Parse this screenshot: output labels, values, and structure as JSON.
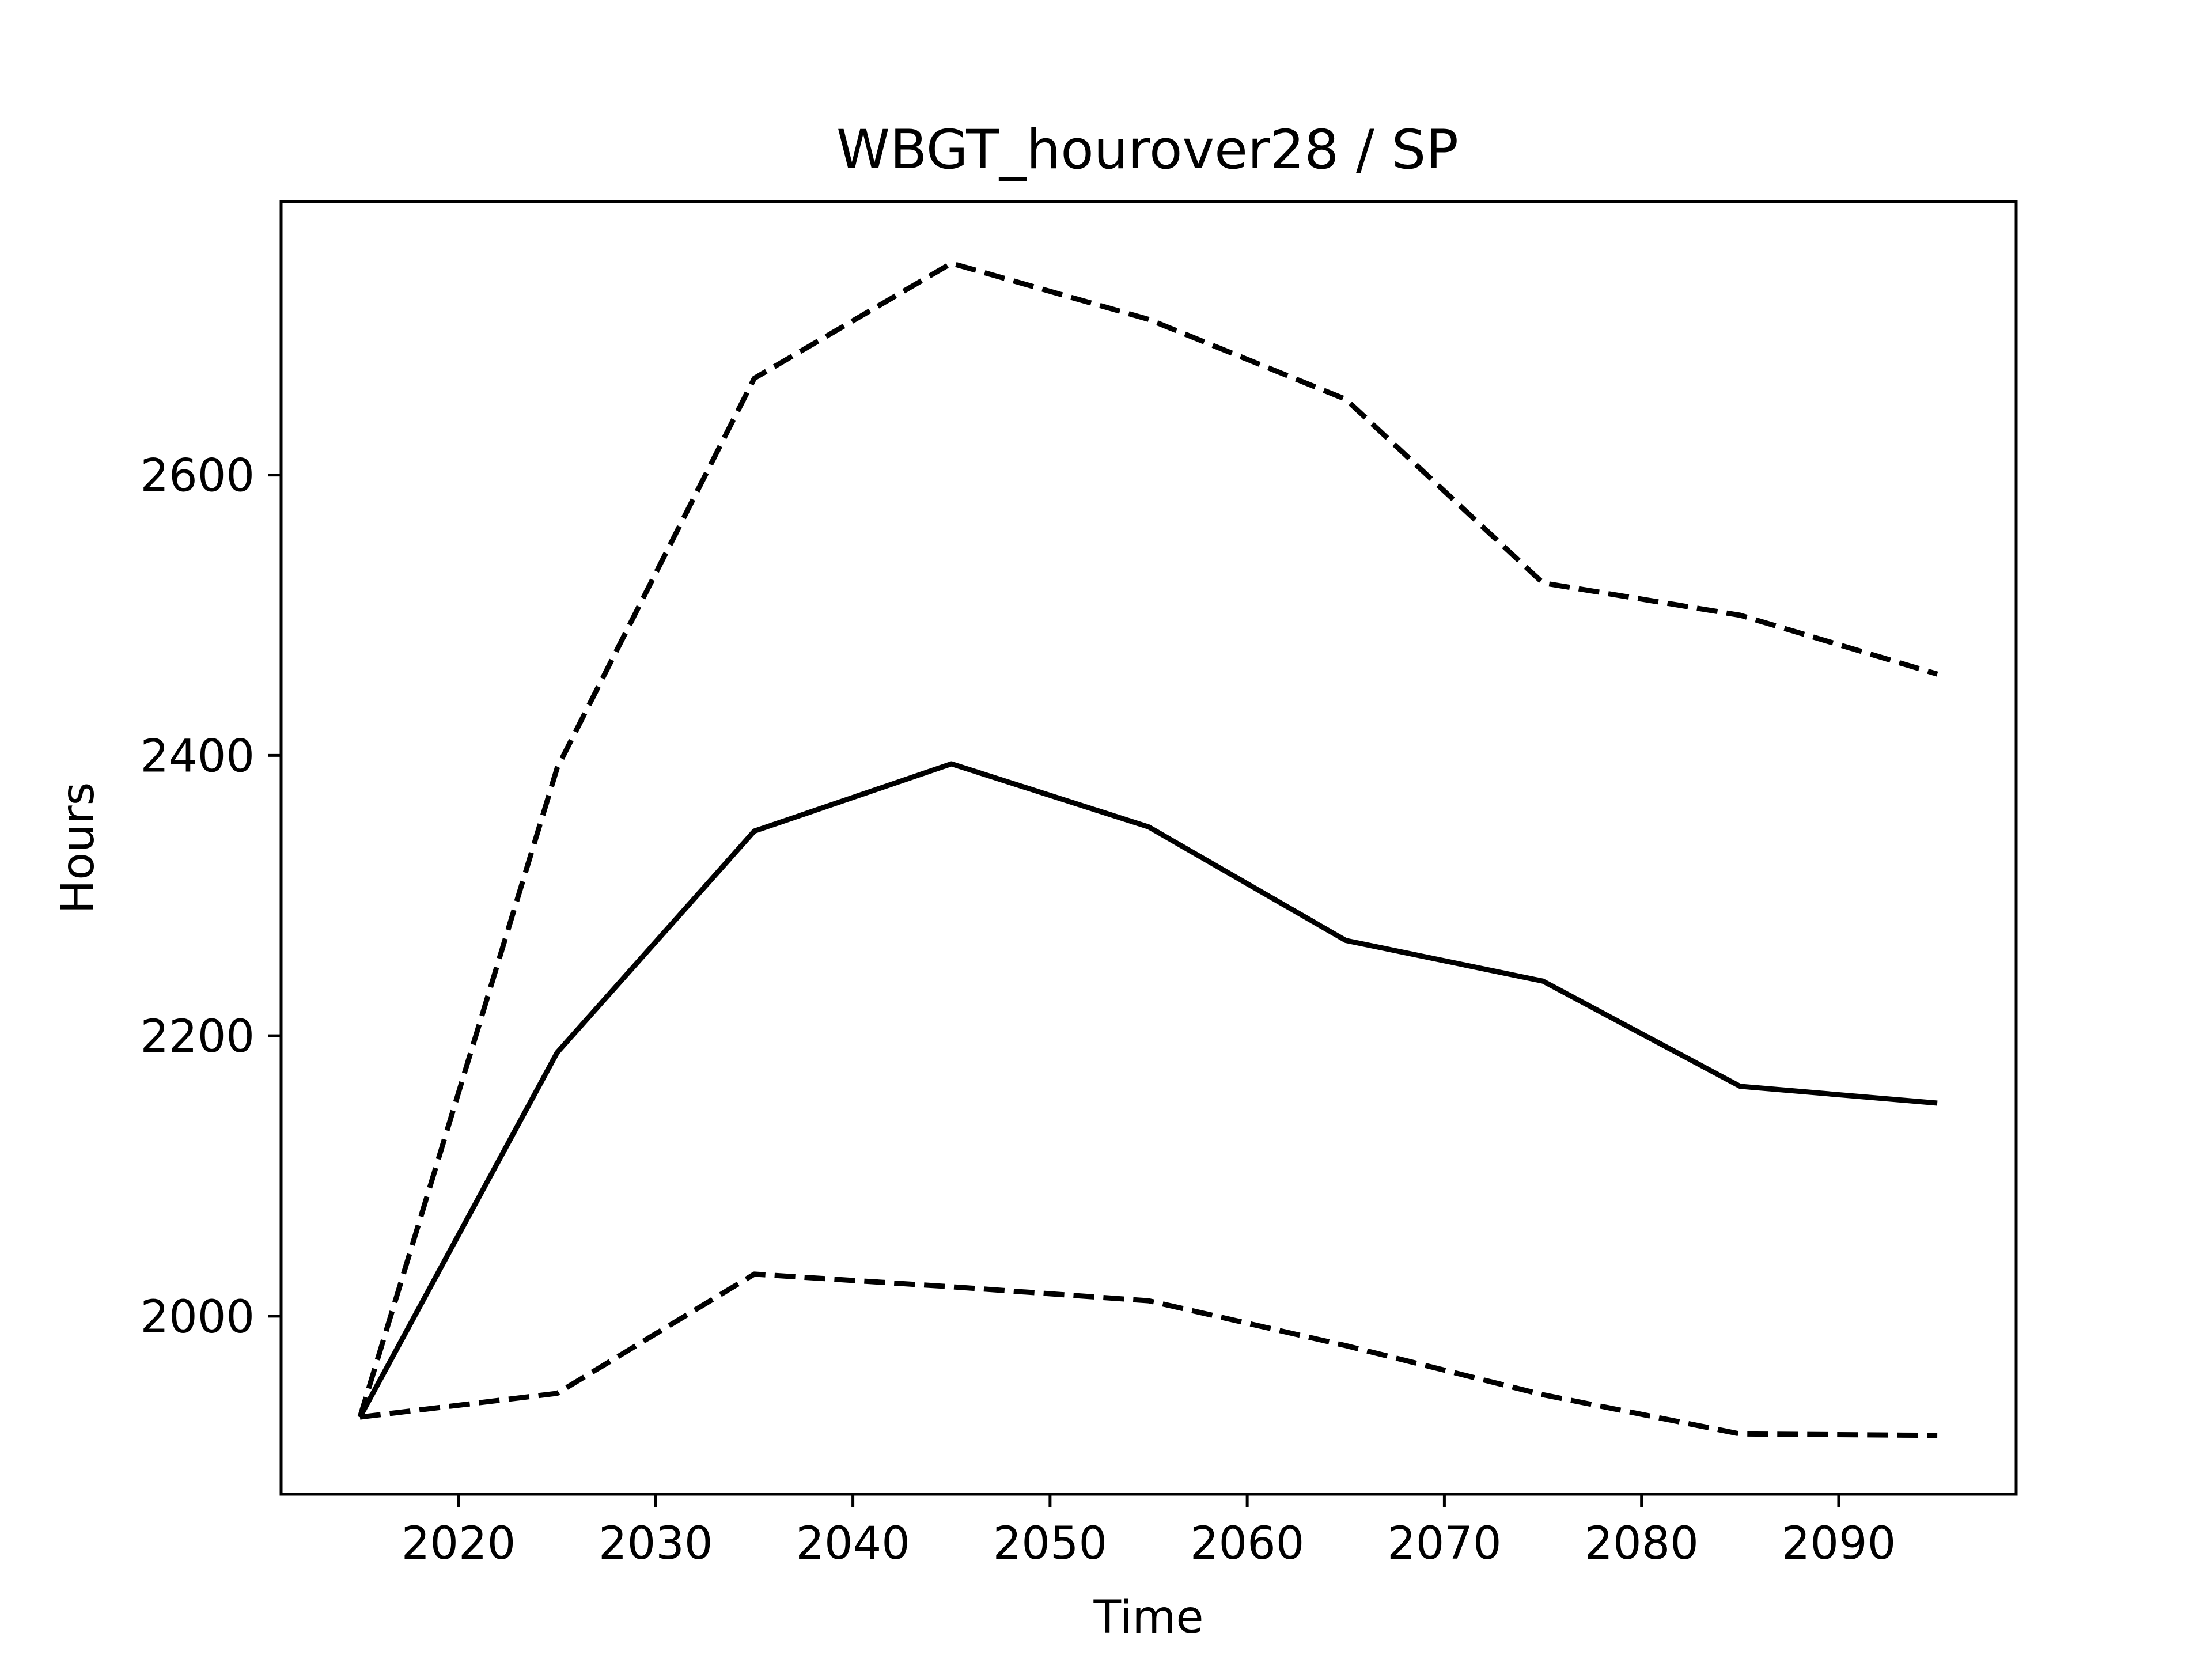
{
  "chart_data": {
    "type": "line",
    "title": "WBGT_hourover28 / SP",
    "xlabel": "Time",
    "ylabel": "Hours",
    "xlim": [
      2011,
      2099
    ],
    "ylim": [
      1873,
      2795
    ],
    "xticks": [
      2020,
      2030,
      2040,
      2050,
      2060,
      2070,
      2080,
      2090
    ],
    "yticks": [
      2000,
      2200,
      2400,
      2600
    ],
    "grid": false,
    "legend": "none",
    "x": [
      2015,
      2025,
      2035,
      2045,
      2055,
      2065,
      2075,
      2085,
      2095
    ],
    "series": [
      {
        "style": "dashed",
        "color": "#000000",
        "values": [
          1928,
          2391,
          2669,
          2751,
          2711,
          2654,
          2523,
          2500,
          2458
        ]
      },
      {
        "style": "solid",
        "color": "#000000",
        "values": [
          1928,
          2188,
          2346,
          2394,
          2349,
          2268,
          2239,
          2164,
          2152
        ]
      },
      {
        "style": "dashed",
        "color": "#000000",
        "values": [
          1928,
          1945,
          2030,
          2021,
          2011,
          1979,
          1944,
          1916,
          1915
        ]
      }
    ]
  }
}
